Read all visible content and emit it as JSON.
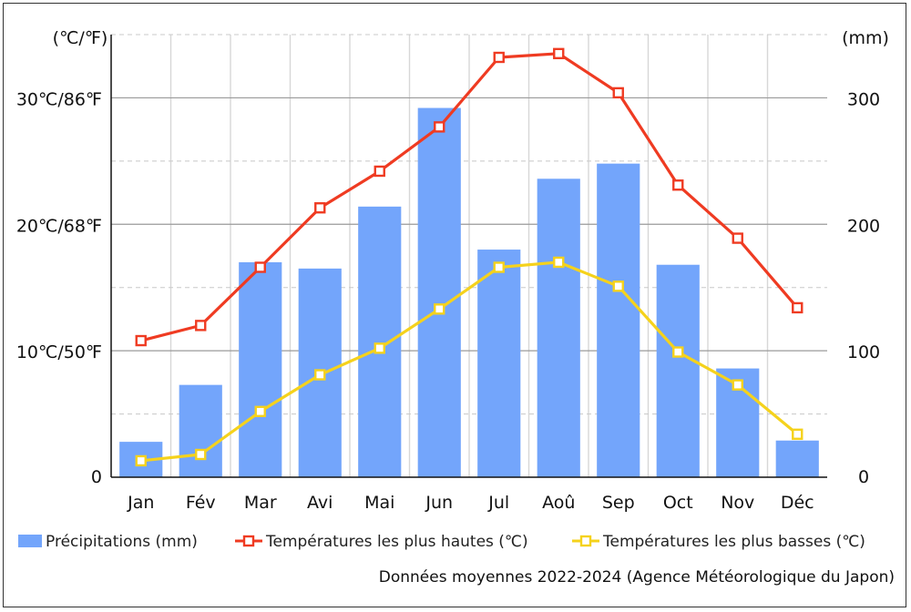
{
  "chart_data": {
    "type": "bar",
    "categories": [
      "Jan",
      "Fév",
      "Mar",
      "Avi",
      "Mai",
      "Jun",
      "Jul",
      "Aoû",
      "Sep",
      "Oct",
      "Nov",
      "Déc"
    ],
    "series": [
      {
        "name": "Précipitations (mm)",
        "kind": "bar",
        "axis": "right",
        "color": "#73a5fb",
        "values": [
          28,
          73,
          170,
          165,
          214,
          292,
          180,
          236,
          248,
          168,
          86,
          29
        ]
      },
      {
        "name": "Températures les plus hautes (℃)",
        "kind": "line",
        "axis": "left",
        "color": "#ef3b22",
        "values": [
          10.8,
          12.0,
          16.6,
          21.3,
          24.2,
          27.7,
          33.2,
          33.5,
          30.4,
          23.1,
          18.9,
          13.4
        ]
      },
      {
        "name": "Températures les plus basses (℃)",
        "kind": "line",
        "axis": "left",
        "color": "#f5d21c",
        "values": [
          1.3,
          1.8,
          5.2,
          8.1,
          10.2,
          13.3,
          16.6,
          17.0,
          15.1,
          9.9,
          7.3,
          3.4
        ]
      }
    ],
    "left_axis": {
      "label": "(℃/℉)",
      "ticks": [
        {
          "value": 0,
          "label": "0"
        },
        {
          "value": 10,
          "label": "10℃/50℉"
        },
        {
          "value": 20,
          "label": "20℃/68℉"
        },
        {
          "value": 30,
          "label": "30℃/86℉"
        }
      ],
      "range": [
        0,
        35
      ]
    },
    "right_axis": {
      "label": "(mm)",
      "ticks": [
        {
          "value": 0,
          "label": "0"
        },
        {
          "value": 100,
          "label": "100"
        },
        {
          "value": 200,
          "label": "200"
        },
        {
          "value": 300,
          "label": "300"
        }
      ],
      "range": [
        0,
        350
      ]
    },
    "grid": true,
    "legend_position": "bottom",
    "source": "Données moyennes 2022-2024 (Agence Météorologique du Japon)"
  }
}
